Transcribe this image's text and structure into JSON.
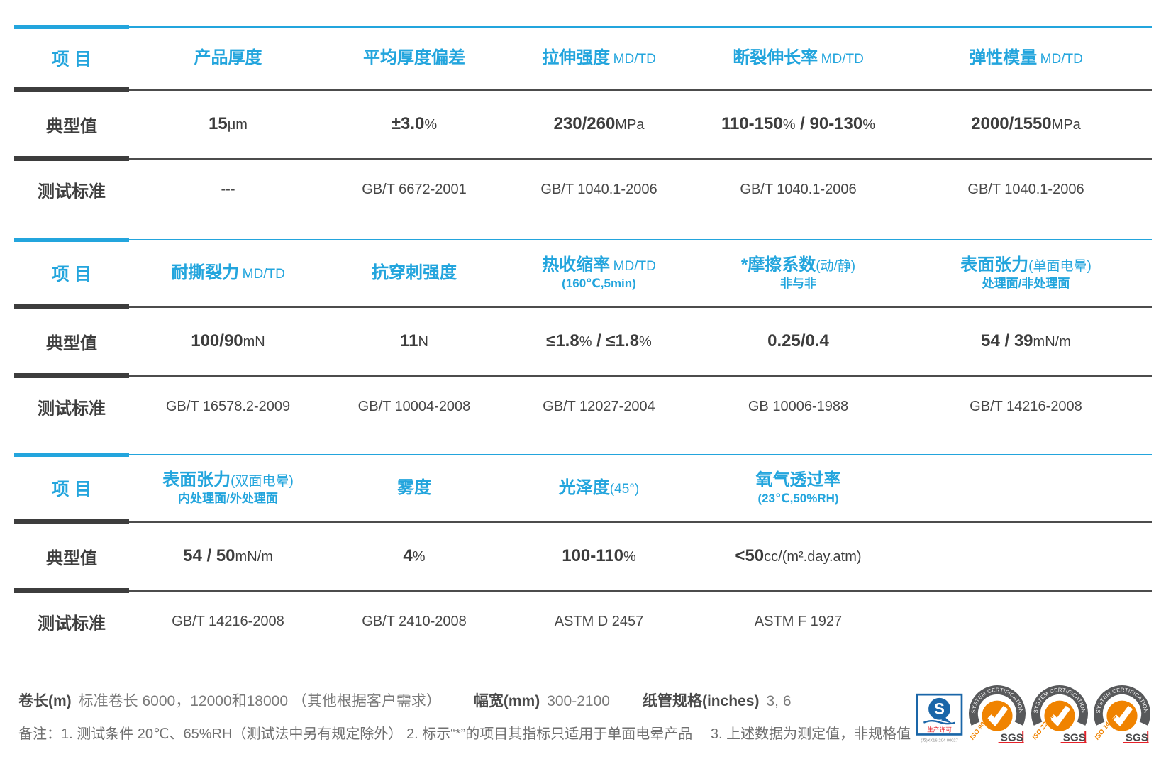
{
  "theme": {
    "blue": "#23a5dd",
    "dark": "#3d3d3d",
    "line": "#4c4c4c",
    "text": "#414141",
    "orange": "#f08300",
    "arc": "#58595b",
    "qs": "#1a66a8",
    "red": "#e62129"
  },
  "tables": [
    {
      "row_labels": {
        "item": "项 目",
        "typical": "典型值",
        "standard": "测试标准"
      },
      "columns": [
        {
          "main": "产品厚度"
        },
        {
          "main": "平均厚度偏差"
        },
        {
          "main": "拉伸强度",
          "suffix": "MD/TD"
        },
        {
          "main": "断裂伸长率",
          "suffix": "MD/TD"
        },
        {
          "main": "弹性模量",
          "suffix": "MD/TD"
        }
      ],
      "typical": [
        [
          {
            "t": "15",
            "b": true
          },
          {
            "t": "μm"
          }
        ],
        [
          {
            "t": "±3.0",
            "b": true
          },
          {
            "t": "%"
          }
        ],
        [
          {
            "t": "230/260",
            "b": true
          },
          {
            "t": "MPa"
          }
        ],
        [
          {
            "t": "110-150",
            "b": true
          },
          {
            "t": "%"
          },
          {
            "t": " / 90-130",
            "b": true
          },
          {
            "t": "%"
          }
        ],
        [
          {
            "t": "2000/1550",
            "b": true
          },
          {
            "t": "MPa"
          }
        ]
      ],
      "standards": [
        "---",
        "GB/T 6672-2001",
        "GB/T 1040.1-2006",
        "GB/T 1040.1-2006",
        "GB/T 1040.1-2006"
      ]
    },
    {
      "row_labels": {
        "item": "项 目",
        "typical": "典型值",
        "standard": "测试标准"
      },
      "columns": [
        {
          "main": "耐撕裂力",
          "suffix": "MD/TD"
        },
        {
          "main": "抗穿刺强度"
        },
        {
          "main": "热收缩率",
          "suffix": "MD/TD",
          "sub": "(160℃,5min)"
        },
        {
          "main": "*摩擦系数",
          "suffix": "(动/静)",
          "sub": "非与非"
        },
        {
          "main": "表面张力",
          "suffix": "(单面电晕)",
          "sub": "处理面/非处理面"
        }
      ],
      "typical": [
        [
          {
            "t": "100/90",
            "b": true
          },
          {
            "t": "mN"
          }
        ],
        [
          {
            "t": "11",
            "b": true
          },
          {
            "t": "N"
          }
        ],
        [
          {
            "t": "≤1.8",
            "b": true
          },
          {
            "t": "%"
          },
          {
            "t": " / ≤1.8",
            "b": true
          },
          {
            "t": "%"
          }
        ],
        [
          {
            "t": "0.25/0.4",
            "b": true
          }
        ],
        [
          {
            "t": "54 / 39",
            "b": true
          },
          {
            "t": "mN/m"
          }
        ]
      ],
      "standards": [
        "GB/T 16578.2-2009",
        "GB/T 10004-2008",
        "GB/T 12027-2004",
        "GB 10006-1988",
        "GB/T 14216-2008"
      ]
    },
    {
      "row_labels": {
        "item": "项 目",
        "typical": "典型值",
        "standard": "测试标准"
      },
      "columns": [
        {
          "main": "表面张力",
          "suffix": "(双面电晕)",
          "sub": "内处理面/外处理面"
        },
        {
          "main": "雾度"
        },
        {
          "main": "光泽度",
          "suffix": "(45°)"
        },
        {
          "main": "氧气透过率",
          "sub": "(23℃,50%RH)"
        },
        {}
      ],
      "typical": [
        [
          {
            "t": "54 / 50",
            "b": true
          },
          {
            "t": "mN/m"
          }
        ],
        [
          {
            "t": "4",
            "b": true
          },
          {
            "t": "%"
          }
        ],
        [
          {
            "t": "100-110",
            "b": true
          },
          {
            "t": "%"
          }
        ],
        [
          {
            "t": "<50",
            "b": true
          },
          {
            "t": "cc/(m².day.atm)"
          }
        ],
        []
      ],
      "standards": [
        "GB/T 14216-2008",
        "GB/T 2410-2008",
        "ASTM D 2457",
        "ASTM F 1927",
        ""
      ]
    }
  ],
  "footer": {
    "specs": [
      {
        "label": "卷长(m)",
        "value": "标准卷长 6000，12000和18000 （其他根据客户需求）"
      },
      {
        "label": "幅宽(mm)",
        "value": "300-2100"
      },
      {
        "label": "纸管规格(inches)",
        "value": "3, 6"
      }
    ],
    "note": "备注：1. 测试条件 20℃、65%RH（测试法中另有规定除外） 2. 标示“*”的项目其指标只适用于单面电晕产品　 3. 上述数据为测定值，非规格值"
  },
  "badges": {
    "qs": {
      "letter": "S",
      "label": "生产许可",
      "code": "(苏)XK16-204-00027"
    },
    "sgs": [
      {
        "arc": "SYSTEM CERTIFICATION",
        "iso": "ISO 9001",
        "brand": "SGS"
      },
      {
        "arc": "SYSTEM CERTIFICATION",
        "iso": "ISO 22000",
        "brand": "SGS"
      },
      {
        "arc": "SYSTEM CERTIFICATION",
        "iso": "ISO 14001",
        "brand": "SGS"
      }
    ]
  }
}
